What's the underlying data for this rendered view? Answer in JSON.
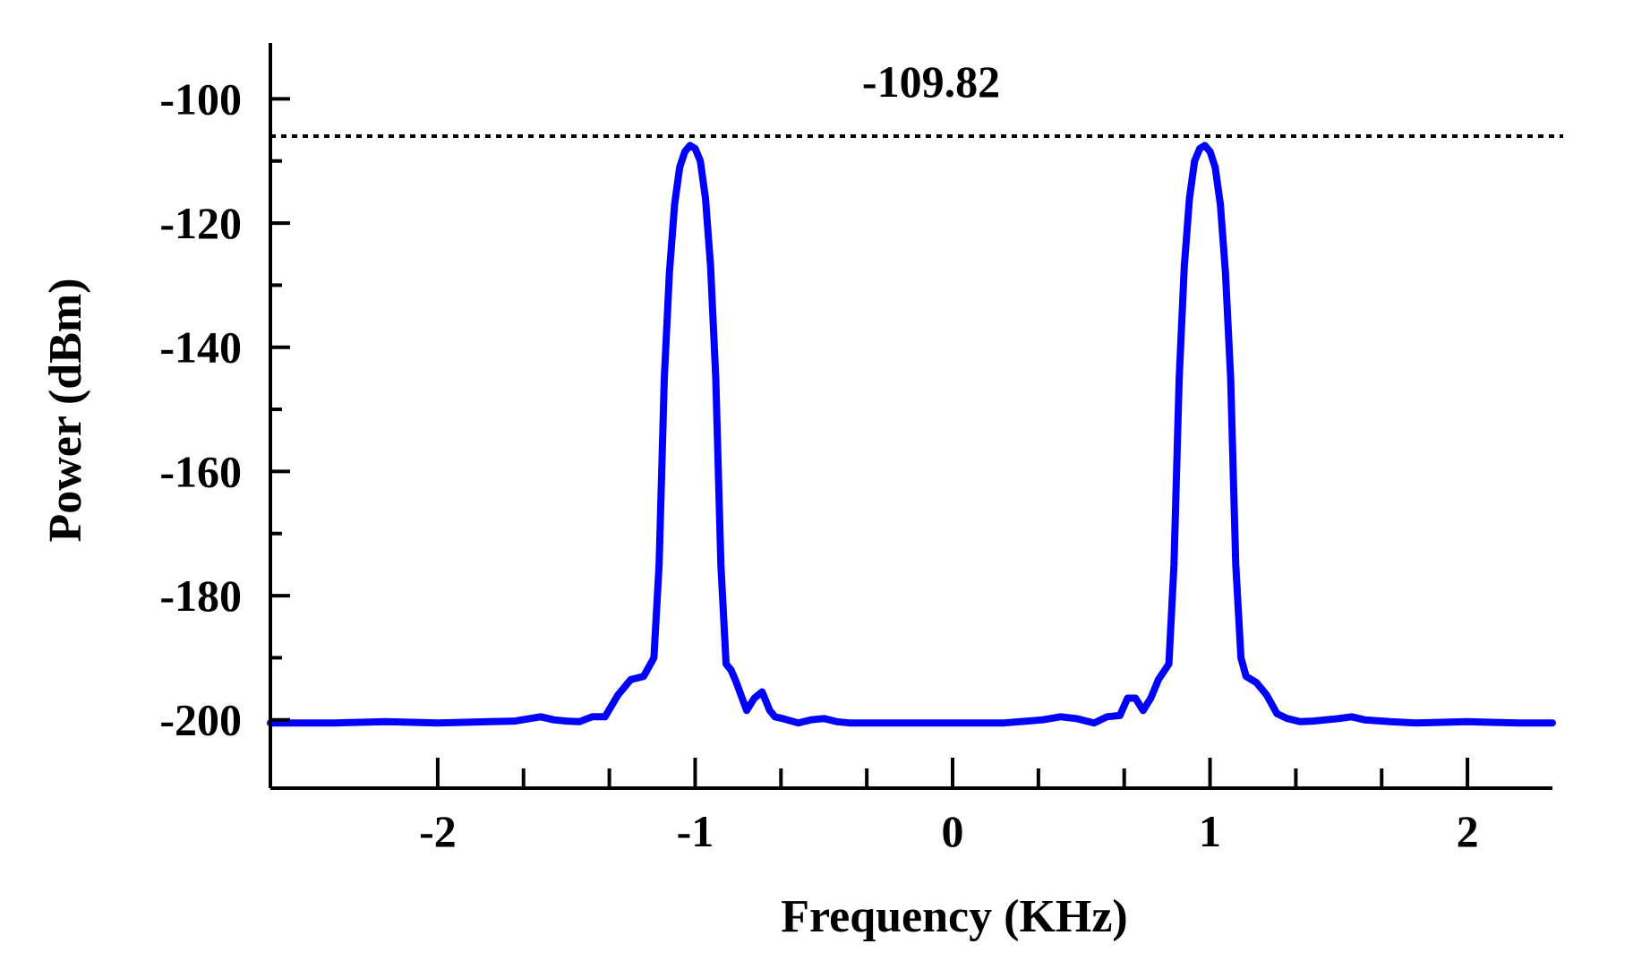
{
  "chart_data": {
    "type": "line",
    "xlabel": "Frequency (KHz)",
    "ylabel": "Power (dBm)",
    "xlim": [
      -2.65,
      2.33
    ],
    "ylim": [
      -211,
      -91
    ],
    "xticks": [
      -2,
      -1,
      0,
      1,
      2
    ],
    "xtick_labels": [
      "-2",
      "-1",
      "0",
      "1",
      "2"
    ],
    "yticks": [
      -100,
      -120,
      -140,
      -160,
      -180,
      -200
    ],
    "ytick_labels": [
      "-100",
      "-120",
      "-140",
      "-160",
      "-180",
      "-200"
    ],
    "grid": false,
    "legend": "none",
    "reference_line": {
      "y": -106,
      "style": "dotted"
    },
    "annotation": "-109.82",
    "series": [
      {
        "color": "#0000ff",
        "x": [
          -2.65,
          -2.4,
          -2.2,
          -2.0,
          -1.8,
          -1.7,
          -1.6,
          -1.55,
          -1.5,
          -1.45,
          -1.4,
          -1.35,
          -1.3,
          -1.25,
          -1.2,
          -1.16,
          -1.14,
          -1.12,
          -1.1,
          -1.08,
          -1.06,
          -1.04,
          -1.02,
          -1.0,
          -0.98,
          -0.96,
          -0.94,
          -0.92,
          -0.9,
          -0.88,
          -0.86,
          -0.84,
          -0.8,
          -0.77,
          -0.74,
          -0.71,
          -0.69,
          -0.66,
          -0.6,
          -0.55,
          -0.5,
          -0.45,
          -0.4,
          -0.2,
          0.0,
          0.2,
          0.35,
          0.42,
          0.48,
          0.55,
          0.6,
          0.65,
          0.68,
          0.71,
          0.74,
          0.77,
          0.8,
          0.84,
          0.86,
          0.88,
          0.9,
          0.92,
          0.94,
          0.96,
          0.98,
          1.0,
          1.02,
          1.04,
          1.06,
          1.08,
          1.1,
          1.12,
          1.14,
          1.16,
          1.18,
          1.22,
          1.26,
          1.3,
          1.35,
          1.4,
          1.5,
          1.55,
          1.6,
          1.7,
          1.8,
          2.0,
          2.2,
          2.33
        ],
        "y": [
          -200.5,
          -200.5,
          -200.3,
          -200.5,
          -200.3,
          -200.2,
          -199.5,
          -200.0,
          -200.2,
          -200.3,
          -199.5,
          -199.5,
          -196.0,
          -193.5,
          -193.0,
          -190.0,
          -175.0,
          -145.0,
          -128.0,
          -117.0,
          -111.0,
          -108.5,
          -107.5,
          -108.0,
          -110.0,
          -116.0,
          -127.0,
          -145.0,
          -175.0,
          -191.0,
          -192.0,
          -194.0,
          -198.5,
          -196.5,
          -195.5,
          -198.5,
          -199.5,
          -199.8,
          -200.5,
          -200.0,
          -199.8,
          -200.3,
          -200.5,
          -200.5,
          -200.5,
          -200.5,
          -200.0,
          -199.5,
          -199.8,
          -200.5,
          -199.5,
          -199.3,
          -196.5,
          -196.5,
          -198.5,
          -196.5,
          -193.5,
          -191.0,
          -175.0,
          -145.0,
          -127.0,
          -116.0,
          -110.0,
          -108.0,
          -107.5,
          -108.5,
          -111.0,
          -117.0,
          -128.0,
          -145.0,
          -175.0,
          -190.0,
          -193.0,
          -193.5,
          -194.0,
          -196.0,
          -199.0,
          -199.8,
          -200.3,
          -200.2,
          -199.8,
          -199.5,
          -200.0,
          -200.3,
          -200.5,
          -200.3,
          -200.5,
          -200.5
        ]
      }
    ]
  }
}
